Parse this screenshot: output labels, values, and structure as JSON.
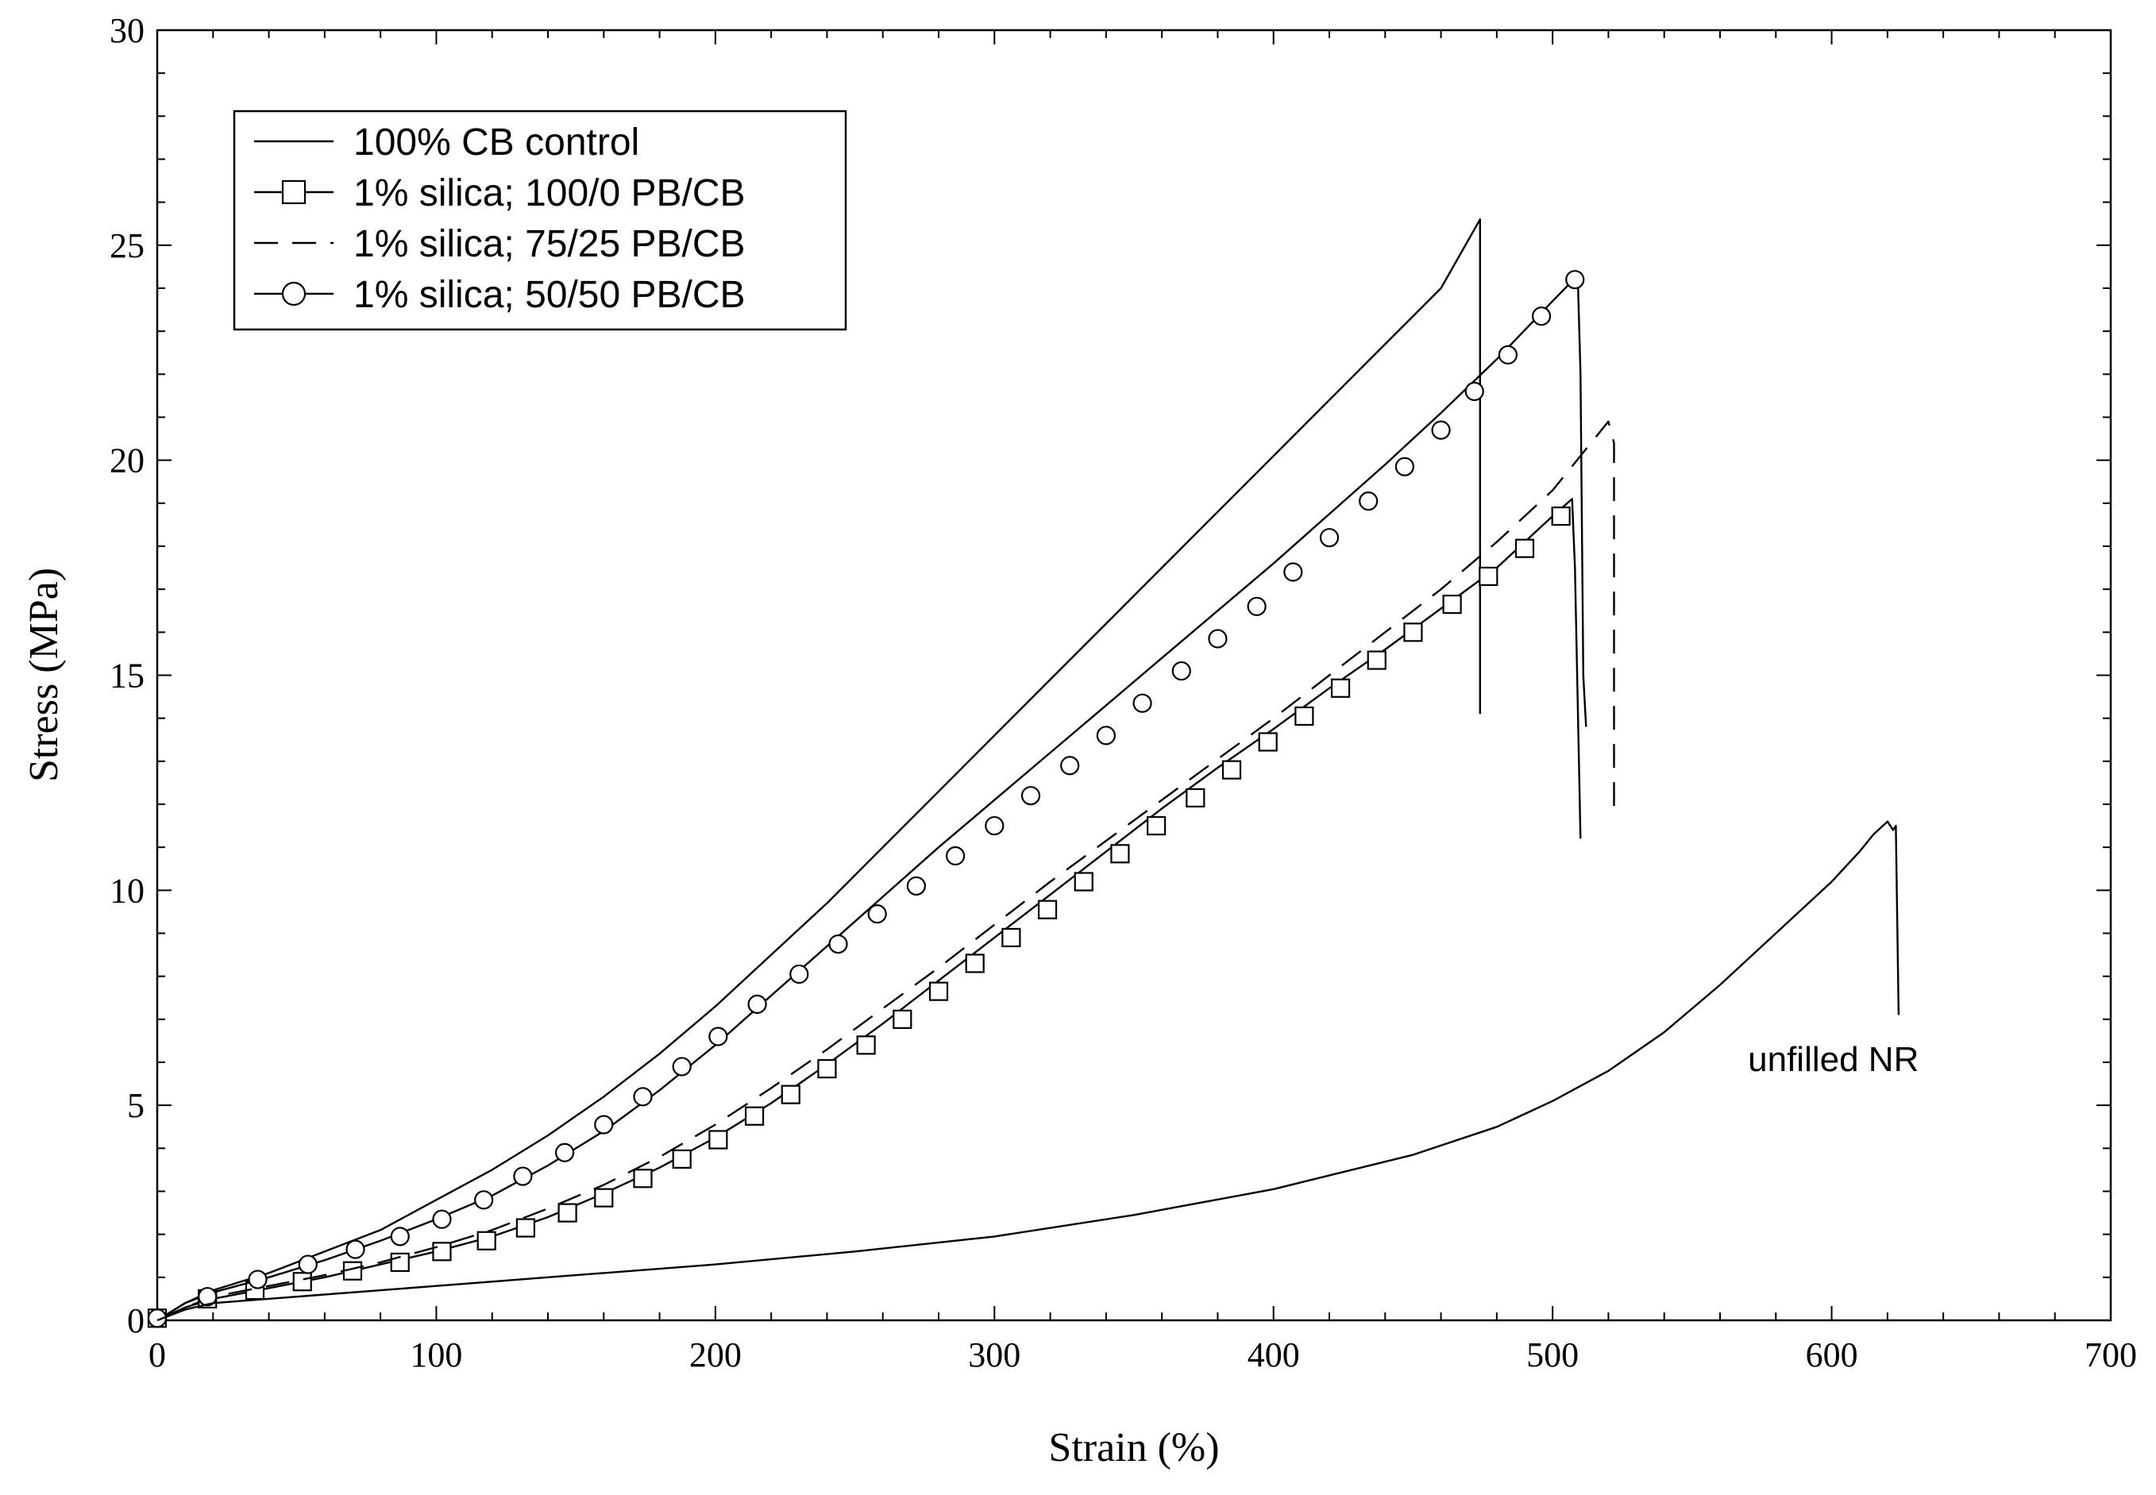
{
  "chart_data": {
    "type": "line",
    "title": "",
    "xlabel": "Strain (%)",
    "ylabel": "Stress (MPa)",
    "xlim": [
      0,
      700
    ],
    "ylim": [
      0,
      30
    ],
    "x_ticks": [
      "0",
      "100",
      "200",
      "300",
      "400",
      "500",
      "600",
      "700"
    ],
    "y_ticks": [
      "0",
      "5",
      "10",
      "15",
      "20",
      "25",
      "30"
    ],
    "grid": false,
    "legend_position": "top-left",
    "series": [
      {
        "name": "100% CB control",
        "style": "solid",
        "marker": "none",
        "points": [
          [
            0,
            0
          ],
          [
            10,
            0.4
          ],
          [
            20,
            0.7
          ],
          [
            40,
            1.1
          ],
          [
            60,
            1.6
          ],
          [
            80,
            2.1
          ],
          [
            100,
            2.8
          ],
          [
            120,
            3.5
          ],
          [
            140,
            4.3
          ],
          [
            160,
            5.2
          ],
          [
            180,
            6.2
          ],
          [
            200,
            7.3
          ],
          [
            220,
            8.5
          ],
          [
            240,
            9.7
          ],
          [
            260,
            11.0
          ],
          [
            280,
            12.3
          ],
          [
            300,
            13.6
          ],
          [
            320,
            14.9
          ],
          [
            340,
            16.2
          ],
          [
            360,
            17.5
          ],
          [
            380,
            18.8
          ],
          [
            400,
            20.1
          ],
          [
            420,
            21.4
          ],
          [
            440,
            22.7
          ],
          [
            460,
            24.0
          ],
          [
            474,
            25.6
          ],
          [
            474,
            14.1
          ]
        ]
      },
      {
        "name": "1% silica; 100/0 PB/CB",
        "style": "solid",
        "marker": "square",
        "points": [
          [
            0,
            0
          ],
          [
            10,
            0.3
          ],
          [
            20,
            0.5
          ],
          [
            40,
            0.75
          ],
          [
            60,
            1.0
          ],
          [
            80,
            1.3
          ],
          [
            100,
            1.6
          ],
          [
            120,
            1.95
          ],
          [
            140,
            2.4
          ],
          [
            160,
            2.95
          ],
          [
            180,
            3.55
          ],
          [
            200,
            4.25
          ],
          [
            220,
            5.05
          ],
          [
            240,
            5.95
          ],
          [
            260,
            6.9
          ],
          [
            280,
            7.9
          ],
          [
            300,
            8.9
          ],
          [
            320,
            9.9
          ],
          [
            340,
            10.9
          ],
          [
            360,
            11.9
          ],
          [
            380,
            12.85
          ],
          [
            400,
            13.75
          ],
          [
            420,
            14.7
          ],
          [
            440,
            15.6
          ],
          [
            460,
            16.55
          ],
          [
            480,
            17.5
          ],
          [
            500,
            18.7
          ],
          [
            507,
            19.1
          ],
          [
            508,
            17.5
          ],
          [
            510,
            11.2
          ]
        ],
        "marker_points": [
          [
            0,
            0.05
          ],
          [
            18,
            0.5
          ],
          [
            35,
            0.7
          ],
          [
            52,
            0.9
          ],
          [
            70,
            1.15
          ],
          [
            87,
            1.35
          ],
          [
            102,
            1.6
          ],
          [
            118,
            1.85
          ],
          [
            132,
            2.15
          ],
          [
            147,
            2.5
          ],
          [
            160,
            2.85
          ],
          [
            174,
            3.3
          ],
          [
            188,
            3.75
          ],
          [
            201,
            4.2
          ],
          [
            214,
            4.75
          ],
          [
            227,
            5.25
          ],
          [
            240,
            5.85
          ],
          [
            254,
            6.4
          ],
          [
            267,
            7.0
          ],
          [
            280,
            7.65
          ],
          [
            293,
            8.3
          ],
          [
            306,
            8.9
          ],
          [
            319,
            9.55
          ],
          [
            332,
            10.2
          ],
          [
            345,
            10.85
          ],
          [
            358,
            11.5
          ],
          [
            372,
            12.15
          ],
          [
            385,
            12.8
          ],
          [
            398,
            13.45
          ],
          [
            411,
            14.05
          ],
          [
            424,
            14.7
          ],
          [
            437,
            15.35
          ],
          [
            450,
            16.0
          ],
          [
            464,
            16.65
          ],
          [
            477,
            17.3
          ],
          [
            490,
            17.95
          ],
          [
            503,
            18.7
          ]
        ]
      },
      {
        "name": "1% silica; 75/25 PB/CB",
        "style": "dashed",
        "marker": "none",
        "points": [
          [
            0,
            0
          ],
          [
            10,
            0.3
          ],
          [
            20,
            0.55
          ],
          [
            40,
            0.8
          ],
          [
            60,
            1.05
          ],
          [
            80,
            1.35
          ],
          [
            100,
            1.7
          ],
          [
            120,
            2.1
          ],
          [
            140,
            2.6
          ],
          [
            160,
            3.15
          ],
          [
            180,
            3.8
          ],
          [
            200,
            4.55
          ],
          [
            220,
            5.4
          ],
          [
            240,
            6.3
          ],
          [
            260,
            7.25
          ],
          [
            280,
            8.2
          ],
          [
            300,
            9.2
          ],
          [
            320,
            10.2
          ],
          [
            340,
            11.15
          ],
          [
            360,
            12.1
          ],
          [
            380,
            13.05
          ],
          [
            400,
            14.0
          ],
          [
            420,
            15.0
          ],
          [
            440,
            16.0
          ],
          [
            460,
            17.0
          ],
          [
            480,
            18.1
          ],
          [
            500,
            19.3
          ],
          [
            520,
            20.9
          ],
          [
            522,
            20.4
          ],
          [
            522,
            11.9
          ]
        ]
      },
      {
        "name": "1% silica; 50/50 PB/CB",
        "style": "solid",
        "marker": "circle",
        "points": [
          [
            0,
            0
          ],
          [
            10,
            0.4
          ],
          [
            20,
            0.65
          ],
          [
            40,
            1.0
          ],
          [
            60,
            1.4
          ],
          [
            80,
            1.85
          ],
          [
            100,
            2.35
          ],
          [
            120,
            2.9
          ],
          [
            140,
            3.6
          ],
          [
            160,
            4.4
          ],
          [
            180,
            5.35
          ],
          [
            200,
            6.4
          ],
          [
            220,
            7.55
          ],
          [
            240,
            8.7
          ],
          [
            260,
            9.85
          ],
          [
            280,
            11.0
          ],
          [
            300,
            12.1
          ],
          [
            320,
            13.2
          ],
          [
            340,
            14.3
          ],
          [
            360,
            15.4
          ],
          [
            380,
            16.5
          ],
          [
            400,
            17.6
          ],
          [
            420,
            18.75
          ],
          [
            440,
            19.9
          ],
          [
            460,
            21.1
          ],
          [
            480,
            22.35
          ],
          [
            500,
            23.7
          ],
          [
            509,
            24.3
          ],
          [
            510,
            22.0
          ],
          [
            511,
            15.0
          ],
          [
            512,
            13.8
          ]
        ],
        "marker_points": [
          [
            0,
            0.05
          ],
          [
            18,
            0.55
          ],
          [
            36,
            0.95
          ],
          [
            54,
            1.3
          ],
          [
            71,
            1.65
          ],
          [
            87,
            1.95
          ],
          [
            102,
            2.35
          ],
          [
            117,
            2.8
          ],
          [
            131,
            3.35
          ],
          [
            146,
            3.9
          ],
          [
            160,
            4.55
          ],
          [
            174,
            5.2
          ],
          [
            188,
            5.9
          ],
          [
            201,
            6.6
          ],
          [
            215,
            7.35
          ],
          [
            230,
            8.05
          ],
          [
            244,
            8.75
          ],
          [
            258,
            9.45
          ],
          [
            272,
            10.1
          ],
          [
            286,
            10.8
          ],
          [
            300,
            11.5
          ],
          [
            313,
            12.2
          ],
          [
            327,
            12.9
          ],
          [
            340,
            13.6
          ],
          [
            353,
            14.35
          ],
          [
            367,
            15.1
          ],
          [
            380,
            15.85
          ],
          [
            394,
            16.6
          ],
          [
            407,
            17.4
          ],
          [
            420,
            18.2
          ],
          [
            434,
            19.05
          ],
          [
            447,
            19.85
          ],
          [
            460,
            20.7
          ],
          [
            472,
            21.6
          ],
          [
            484,
            22.45
          ],
          [
            496,
            23.35
          ],
          [
            508,
            24.2
          ]
        ]
      },
      {
        "name": "unfilled NR",
        "style": "solid",
        "marker": "none",
        "points": [
          [
            0,
            0
          ],
          [
            10,
            0.25
          ],
          [
            20,
            0.4
          ],
          [
            50,
            0.55
          ],
          [
            100,
            0.8
          ],
          [
            150,
            1.05
          ],
          [
            200,
            1.3
          ],
          [
            250,
            1.6
          ],
          [
            300,
            1.95
          ],
          [
            350,
            2.45
          ],
          [
            400,
            3.05
          ],
          [
            450,
            3.85
          ],
          [
            480,
            4.5
          ],
          [
            500,
            5.1
          ],
          [
            520,
            5.8
          ],
          [
            540,
            6.7
          ],
          [
            560,
            7.8
          ],
          [
            580,
            9.0
          ],
          [
            600,
            10.2
          ],
          [
            610,
            10.9
          ],
          [
            615,
            11.3
          ],
          [
            620,
            11.6
          ],
          [
            622,
            11.4
          ],
          [
            623,
            11.5
          ],
          [
            624,
            7.1
          ]
        ]
      }
    ],
    "annotations": [
      {
        "text": "unfilled NR",
        "x": 570,
        "y": 5.8
      }
    ]
  }
}
